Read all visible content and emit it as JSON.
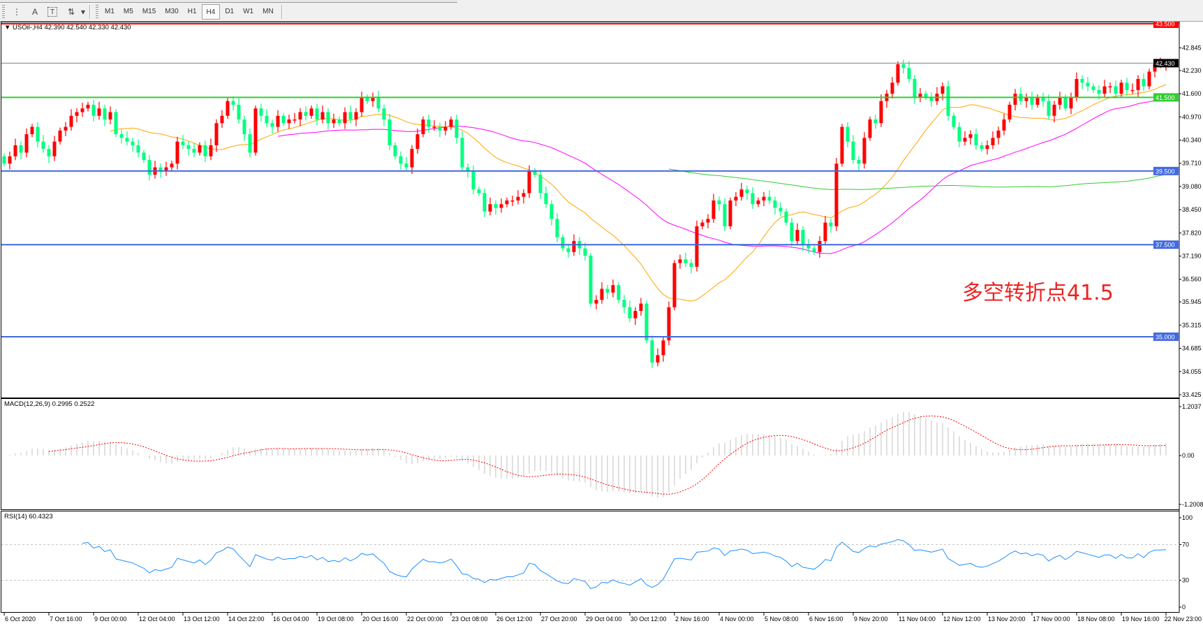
{
  "toolbar": {
    "tools": [
      {
        "name": "period-separator-icon",
        "glyph": "⋮"
      },
      {
        "name": "text-tool-icon",
        "glyph": "A"
      },
      {
        "name": "text-label-tool-icon",
        "glyph": "T"
      },
      {
        "name": "arrows-tool-icon",
        "glyph": "⇅"
      }
    ],
    "dropdown_glyph": "▾",
    "timeframes": [
      "M1",
      "M5",
      "M15",
      "M30",
      "H1",
      "H4",
      "D1",
      "W1",
      "MN"
    ],
    "active_timeframe": "H4"
  },
  "chart": {
    "symbol_header": "USOil-,H4  42.390 42.540 42.330 42.430",
    "annotation": "多空转折点41.5",
    "colors": {
      "bull": "#FF0000",
      "bear": "#00FF7F",
      "ma_fast": "#FFA500",
      "ma_mid": "#FF00FF",
      "ma_slow": "#32CD32",
      "support": "#4169E1",
      "pivot": "#32CD32",
      "resistance": "#FF0000",
      "last_price": "#808080",
      "macd_hist": "#C0C0C0",
      "macd_signal": "#FF0000",
      "rsi": "#1E90FF"
    },
    "price_axis_ticks": [
      "42.845",
      "42.230",
      "41.600",
      "40.970",
      "40.340",
      "39.710",
      "39.080",
      "38.450",
      "37.820",
      "37.190",
      "36.560",
      "35.945",
      "35.315",
      "34.685",
      "34.055",
      "33.425"
    ],
    "horizontal_lines": [
      {
        "price": 43.5,
        "label": "43.500",
        "role": "resistance"
      },
      {
        "price": 41.5,
        "label": "41.500",
        "role": "pivot"
      },
      {
        "price": 39.5,
        "label": "39.500",
        "role": "support"
      },
      {
        "price": 37.5,
        "label": "37.500",
        "role": "support"
      },
      {
        "price": 35.0,
        "label": "35.000",
        "role": "support"
      }
    ],
    "last_price": {
      "price": 42.43,
      "label": "42.430"
    },
    "time_labels": [
      "6 Oct 2020",
      "7 Oct 16:00",
      "9 Oct 00:00",
      "12 Oct 04:00",
      "13 Oct 12:00",
      "14 Oct 22:00",
      "16 Oct 04:00",
      "19 Oct 08:00",
      "20 Oct 16:00",
      "22 Oct 00:00",
      "23 Oct 08:00",
      "26 Oct 12:00",
      "27 Oct 20:00",
      "29 Oct 04:00",
      "30 Oct 12:00",
      "2 Nov 16:00",
      "4 Nov 00:00",
      "5 Nov 08:00",
      "6 Nov 16:00",
      "9 Nov 20:00",
      "11 Nov 04:00",
      "12 Nov 12:00",
      "13 Nov 20:00",
      "17 Nov 00:00",
      "18 Nov 08:00",
      "19 Nov 16:00",
      "22 Nov 23:00"
    ]
  },
  "macd": {
    "header": "MACD(12,26,9) 0.2995 0.2522",
    "axis_labels": [
      "1.2037",
      "0.00",
      "-1.2008"
    ]
  },
  "rsi": {
    "header": "RSI(14) 60.4323",
    "axis_labels": [
      "100",
      "70",
      "30",
      "0"
    ],
    "levels": [
      70,
      30
    ]
  },
  "chart_data": {
    "type": "candlestick",
    "symbol": "USOil-",
    "timeframe": "H4",
    "ylim": [
      33.425,
      43.5
    ],
    "first_open": 39.9,
    "close": [
      39.7,
      39.9,
      40.2,
      40.0,
      40.5,
      40.7,
      40.3,
      40.1,
      39.9,
      40.3,
      40.6,
      40.7,
      41.0,
      41.1,
      41.2,
      41.3,
      41.0,
      41.2,
      40.9,
      41.1,
      40.5,
      40.4,
      40.3,
      40.2,
      40.0,
      39.8,
      39.4,
      39.6,
      39.5,
      39.6,
      39.7,
      40.3,
      40.2,
      40.1,
      40.0,
      40.2,
      39.9,
      40.2,
      40.8,
      41.0,
      41.4,
      41.3,
      40.9,
      40.5,
      40.0,
      41.2,
      41.0,
      40.8,
      40.7,
      41.0,
      40.8,
      40.9,
      40.9,
      41.1,
      41.0,
      41.2,
      40.9,
      41.1,
      40.8,
      40.9,
      40.8,
      41.1,
      40.9,
      41.1,
      41.5,
      41.4,
      41.5,
      41.2,
      40.9,
      40.2,
      39.9,
      39.7,
      39.6,
      40.1,
      40.5,
      40.9,
      40.7,
      40.7,
      40.6,
      40.7,
      40.9,
      40.4,
      39.6,
      39.5,
      39.0,
      38.9,
      38.4,
      38.6,
      38.5,
      38.6,
      38.7,
      38.7,
      38.8,
      38.9,
      39.5,
      39.4,
      38.9,
      38.6,
      38.2,
      37.7,
      37.4,
      37.3,
      37.6,
      37.4,
      37.2,
      35.9,
      36.0,
      36.3,
      36.2,
      36.4,
      36.0,
      35.8,
      35.5,
      35.7,
      35.9,
      34.9,
      34.3,
      34.5,
      34.9,
      35.8,
      37.0,
      37.1,
      37.0,
      36.9,
      38.0,
      38.1,
      38.2,
      38.7,
      38.6,
      38.0,
      38.7,
      38.8,
      39.0,
      38.9,
      38.6,
      38.7,
      38.8,
      38.7,
      38.5,
      38.4,
      38.1,
      37.6,
      37.9,
      37.5,
      37.4,
      37.3,
      37.6,
      38.1,
      38.0,
      39.7,
      40.7,
      40.3,
      39.8,
      39.7,
      40.4,
      40.9,
      40.8,
      41.4,
      41.6,
      41.9,
      42.4,
      42.3,
      42.0,
      41.5,
      41.6,
      41.5,
      41.4,
      41.6,
      41.8,
      41.0,
      40.7,
      40.3,
      40.4,
      40.5,
      40.2,
      40.1,
      40.2,
      40.4,
      40.6,
      40.9,
      41.3,
      41.6,
      41.4,
      41.5,
      41.3,
      41.5,
      41.4,
      41.0,
      41.3,
      41.5,
      41.2,
      41.5,
      42.0,
      41.9,
      41.8,
      41.7,
      41.6,
      41.8,
      41.8,
      41.6,
      41.9,
      41.7,
      41.7,
      42.0,
      41.8,
      42.2,
      42.4,
      42.4,
      42.43
    ]
  }
}
